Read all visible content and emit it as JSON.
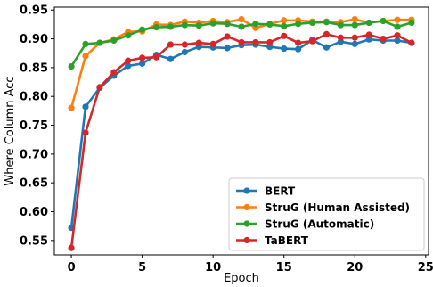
{
  "chart_data": {
    "type": "line",
    "title": "",
    "xlabel": "Epoch",
    "ylabel": "Where Column Acc",
    "xlim": [
      -1.2,
      25.2
    ],
    "ylim": [
      0.525,
      0.955
    ],
    "xticks": [
      0,
      5,
      10,
      15,
      20,
      25
    ],
    "xtick_labels": [
      "0",
      "5",
      "10",
      "15",
      "20",
      "25"
    ],
    "yticks": [
      0.55,
      0.6,
      0.65,
      0.7,
      0.75,
      0.8,
      0.85,
      0.9,
      0.95
    ],
    "ytick_labels": [
      "0.55",
      "0.60",
      "0.65",
      "0.70",
      "0.75",
      "0.80",
      "0.85",
      "0.90",
      "0.95"
    ],
    "grid": false,
    "legend_position": "lower-right",
    "x": [
      0,
      1,
      2,
      3,
      4,
      5,
      6,
      7,
      8,
      9,
      10,
      11,
      12,
      13,
      14,
      15,
      16,
      17,
      18,
      19,
      20,
      21,
      22,
      23,
      24
    ],
    "series": [
      {
        "name": "BERT",
        "color": "#1f77b4",
        "values": [
          0.572,
          0.782,
          0.815,
          0.836,
          0.853,
          0.857,
          0.872,
          0.865,
          0.877,
          0.886,
          0.885,
          0.884,
          0.889,
          0.89,
          0.886,
          0.883,
          0.882,
          0.898,
          0.885,
          0.895,
          0.891,
          0.899,
          0.897,
          0.897,
          0.893
        ]
      },
      {
        "name": "StruG (Human Assisted)",
        "color": "#ff7f0e",
        "values": [
          0.78,
          0.87,
          0.893,
          0.899,
          0.912,
          0.913,
          0.925,
          0.924,
          0.93,
          0.928,
          0.931,
          0.929,
          0.934,
          0.919,
          0.926,
          0.932,
          0.932,
          0.93,
          0.93,
          0.929,
          0.934,
          0.928,
          0.931,
          0.933,
          0.933
        ]
      },
      {
        "name": "StruG (Automatic)",
        "color": "#2ca02c",
        "values": [
          0.852,
          0.891,
          0.893,
          0.897,
          0.906,
          0.916,
          0.92,
          0.921,
          0.924,
          0.923,
          0.927,
          0.926,
          0.921,
          0.926,
          0.925,
          0.922,
          0.926,
          0.928,
          0.929,
          0.924,
          0.924,
          0.928,
          0.931,
          0.921,
          0.928
        ]
      },
      {
        "name": "TaBERT",
        "color": "#d62728",
        "values": [
          0.537,
          0.737,
          0.816,
          0.842,
          0.862,
          0.867,
          0.868,
          0.89,
          0.89,
          0.893,
          0.891,
          0.904,
          0.894,
          0.894,
          0.894,
          0.905,
          0.893,
          0.896,
          0.908,
          0.902,
          0.902,
          0.907,
          0.9,
          0.906,
          0.893
        ]
      }
    ]
  }
}
